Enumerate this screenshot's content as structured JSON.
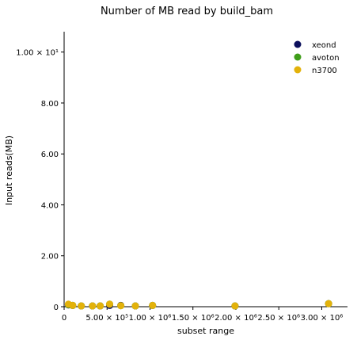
{
  "chart_data": {
    "type": "scatter",
    "title": "Number of MB read by build_bam",
    "xlabel": "subset range",
    "ylabel": "Input reads(MB)",
    "xlim": [
      0,
      3300000
    ],
    "ylim": [
      0,
      10.8
    ],
    "x_ticks": [
      {
        "value": 0,
        "label": "0"
      },
      {
        "value": 500000,
        "label": "5.00 × 10⁵"
      },
      {
        "value": 1000000,
        "label": "1.00 × 10⁶"
      },
      {
        "value": 1500000,
        "label": "1.50 × 10⁶"
      },
      {
        "value": 2000000,
        "label": "2.00 × 10⁶"
      },
      {
        "value": 2500000,
        "label": "2.50 × 10⁶"
      },
      {
        "value": 3000000,
        "label": "3.00 × 10⁶"
      }
    ],
    "y_ticks": [
      {
        "value": 0,
        "label": "0"
      },
      {
        "value": 2,
        "label": "2.00"
      },
      {
        "value": 4,
        "label": "4.00"
      },
      {
        "value": 6,
        "label": "6.00"
      },
      {
        "value": 8,
        "label": "8.00"
      },
      {
        "value": 10,
        "label": "1.00 × 10¹"
      }
    ],
    "grid": false,
    "legend_position": "top-right",
    "series": [
      {
        "name": "xeond",
        "color": "#0b0f5c",
        "points": [
          [
            50000,
            0.07
          ],
          [
            100000,
            0.05
          ],
          [
            200000,
            0.03
          ],
          [
            330000,
            0.03
          ],
          [
            420000,
            0.03
          ],
          [
            530000,
            0.05
          ],
          [
            660000,
            0.05
          ],
          [
            830000,
            0.03
          ],
          [
            1030000,
            0.05
          ],
          [
            1990000,
            0.03
          ],
          [
            3080000,
            0.12
          ]
        ]
      },
      {
        "name": "avoton",
        "color": "#3f9e1a",
        "points": [
          [
            50000,
            0.08
          ],
          [
            100000,
            0.05
          ],
          [
            200000,
            0.03
          ],
          [
            330000,
            0.03
          ],
          [
            420000,
            0.03
          ],
          [
            530000,
            0.1
          ],
          [
            660000,
            0.04
          ],
          [
            830000,
            0.03
          ],
          [
            1030000,
            0.05
          ],
          [
            1990000,
            0.03
          ],
          [
            3080000,
            0.12
          ]
        ]
      },
      {
        "name": "n3700",
        "color": "#e3b20a",
        "points": [
          [
            50000,
            0.1
          ],
          [
            100000,
            0.05
          ],
          [
            200000,
            0.03
          ],
          [
            330000,
            0.03
          ],
          [
            420000,
            0.03
          ],
          [
            530000,
            0.1
          ],
          [
            660000,
            0.04
          ],
          [
            830000,
            0.03
          ],
          [
            1030000,
            0.05
          ],
          [
            1990000,
            0.03
          ],
          [
            3080000,
            0.12
          ]
        ]
      }
    ]
  }
}
